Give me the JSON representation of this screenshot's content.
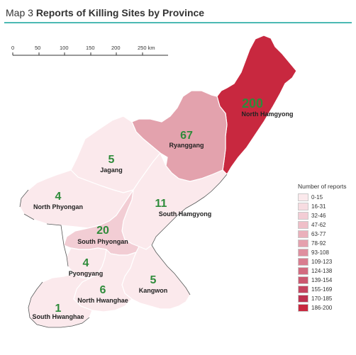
{
  "header": {
    "map_label": "Map 3",
    "title": "Reports of Killing Sites by Province"
  },
  "scale": {
    "ticks": [
      "0",
      "50",
      "100",
      "150",
      "200",
      "250 km"
    ]
  },
  "legend": {
    "title": "Number of reports",
    "items": [
      {
        "label": "0-15",
        "color": "#fbe9ec"
      },
      {
        "label": "16-31",
        "color": "#f7dce1"
      },
      {
        "label": "32-46",
        "color": "#f3cdd5"
      },
      {
        "label": "47-62",
        "color": "#efbfc8"
      },
      {
        "label": "63-77",
        "color": "#eab0bb"
      },
      {
        "label": "78-92",
        "color": "#e5a1ae"
      },
      {
        "label": "93-108",
        "color": "#df8f9f"
      },
      {
        "label": "109-123",
        "color": "#d97d90"
      },
      {
        "label": "124-138",
        "color": "#d26b80"
      },
      {
        "label": "139-154",
        "color": "#cb5870"
      },
      {
        "label": "155-169",
        "color": "#c44560"
      },
      {
        "label": "170-185",
        "color": "#bd3250"
      },
      {
        "label": "186-200",
        "color": "#c8283f"
      }
    ]
  },
  "provinces": [
    {
      "name": "North Hamgyong",
      "count": "200",
      "color": "#c8283f"
    },
    {
      "name": "Ryanggang",
      "count": "67",
      "color": "#e3a2ad"
    },
    {
      "name": "Jagang",
      "count": "5",
      "color": "#fbe9ec"
    },
    {
      "name": "North Phyongan",
      "count": "4",
      "color": "#fbe9ec"
    },
    {
      "name": "South Hamgyong",
      "count": "11",
      "color": "#fbe9ec"
    },
    {
      "name": "South Phyongan",
      "count": "20",
      "color": "#f2cdd4"
    },
    {
      "name": "Pyongyang",
      "count": "4",
      "color": "#fbe9ec"
    },
    {
      "name": "Kangwon",
      "count": "5",
      "color": "#fbe9ec"
    },
    {
      "name": "North Hwanghae",
      "count": "6",
      "color": "#fbe9ec"
    },
    {
      "name": "South Hwanghae",
      "count": "1",
      "color": "#fbe9ec"
    }
  ],
  "colors": {
    "count_text": "#2e8b3a",
    "border": "#ffffff",
    "coast": "#555555",
    "accent_rule": "#4bb9b3"
  }
}
